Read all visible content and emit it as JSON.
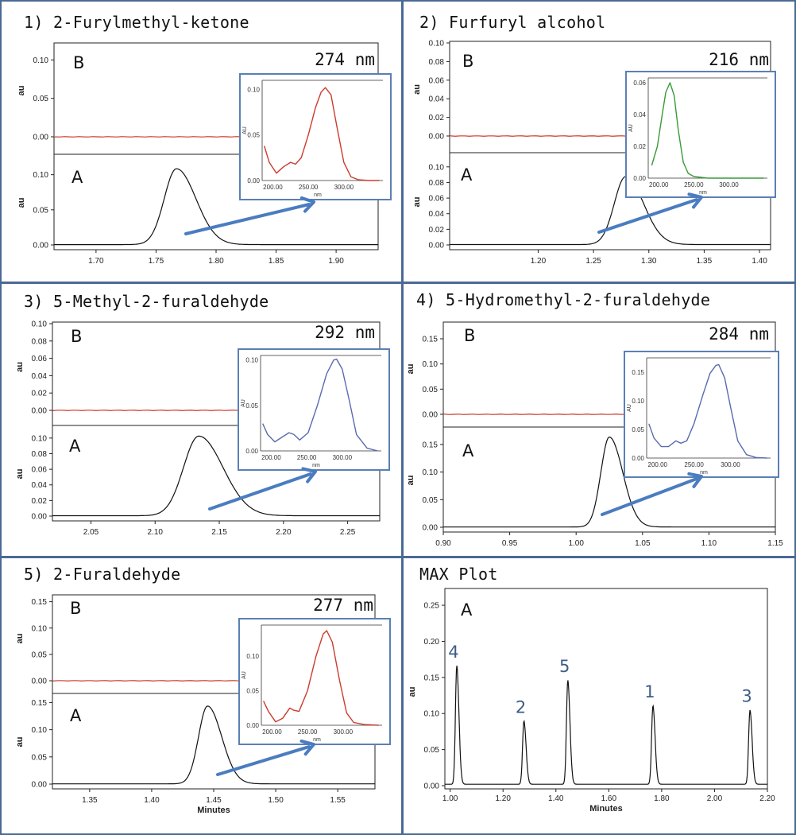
{
  "colors": {
    "frame": "#4a6a95",
    "spectrum_line": "#d04a3a",
    "chrom_line": "#111111",
    "arrow": "#4a7cc0",
    "inset_border": "#5b7fb5"
  },
  "chart_data": [
    {
      "type": "line",
      "title": "1) 2-Furylmethyl-ketone",
      "wavelength": "274 nm",
      "panel_B": {
        "label": "B",
        "ylabel": "au",
        "yticks": [
          "0.00",
          "0.05",
          "0.10"
        ],
        "ylim": [
          0,
          0.12
        ],
        "trace": "flat",
        "trace_color": "#d04a3a"
      },
      "panel_A": {
        "label": "A",
        "ylabel": "au",
        "yticks": [
          "0.00",
          "0.05",
          "0.10"
        ],
        "ylim": [
          0,
          0.12
        ],
        "peak_x": 1.767,
        "peak_y": 0.108,
        "xlim": [
          1.665,
          1.935
        ],
        "xticks": [
          "1.70",
          "1.75",
          "1.80",
          "1.85",
          "1.90"
        ],
        "xlabel": ""
      },
      "inset": {
        "ylabel": "AU",
        "xlabel": "nm",
        "xticks": [
          "200.00",
          "250.00",
          "300.00"
        ],
        "yticks": [
          "0.00",
          "0.05",
          "0.10"
        ],
        "ylim": [
          0,
          0.11
        ],
        "color": "#cc3b2e",
        "x": [
          188,
          195,
          205,
          215,
          225,
          232,
          240,
          250,
          260,
          268,
          274,
          282,
          290,
          300,
          310,
          320,
          335,
          350
        ],
        "y": [
          0.038,
          0.02,
          0.008,
          0.015,
          0.02,
          0.018,
          0.025,
          0.05,
          0.08,
          0.097,
          0.102,
          0.094,
          0.06,
          0.02,
          0.004,
          0.001,
          0.0,
          0.0
        ]
      }
    },
    {
      "type": "line",
      "title": "2) Furfuryl alcohol",
      "wavelength": "216 nm",
      "panel_B": {
        "label": "B",
        "ylabel": "au",
        "yticks": [
          "0.00",
          "0.02",
          "0.04",
          "0.06",
          "0.08",
          "0.10"
        ],
        "ylim": [
          0,
          0.1
        ],
        "trace": "flat",
        "trace_color": "#d04a3a"
      },
      "panel_A": {
        "label": "A",
        "ylabel": "au",
        "yticks": [
          "0.00",
          "0.02",
          "0.04",
          "0.06",
          "0.08",
          "0.10"
        ],
        "ylim": [
          0,
          0.11
        ],
        "peak_x": 1.279,
        "peak_y": 0.087,
        "xlim": [
          1.12,
          1.41
        ],
        "xticks": [
          "1.20",
          "1.25",
          "1.30",
          "1.35",
          "1.40"
        ],
        "xlabel": ""
      },
      "inset": {
        "ylabel": "AU",
        "xlabel": "nm",
        "xticks": [
          "200.00",
          "250.00",
          "300.00"
        ],
        "yticks": [
          "0.00",
          "0.02",
          "0.04",
          "0.06"
        ],
        "ylim": [
          0,
          0.063
        ],
        "color": "#3a9a3a",
        "x": [
          190,
          198,
          205,
          210,
          216,
          222,
          228,
          235,
          242,
          250,
          270,
          300,
          330,
          350
        ],
        "y": [
          0.008,
          0.02,
          0.04,
          0.054,
          0.06,
          0.052,
          0.03,
          0.01,
          0.003,
          0.001,
          0.0,
          0.0,
          0.0,
          0.0
        ]
      }
    },
    {
      "type": "line",
      "title": "3) 5-Methyl-2-furaldehyde",
      "wavelength": "292 nm",
      "panel_B": {
        "label": "B",
        "ylabel": "au",
        "yticks": [
          "0.00",
          "0.02",
          "0.04",
          "0.06",
          "0.08",
          "0.10"
        ],
        "ylim": [
          0,
          0.1
        ],
        "trace": "flat",
        "trace_color": "#d04a3a"
      },
      "panel_A": {
        "label": "A",
        "ylabel": "au",
        "yticks": [
          "0.00",
          "0.02",
          "0.04",
          "0.06",
          "0.08",
          "0.10"
        ],
        "ylim": [
          0,
          0.108
        ],
        "peak_x": 2.134,
        "peak_y": 0.102,
        "xlim": [
          2.02,
          2.275
        ],
        "xticks": [
          "2.05",
          "2.10",
          "2.15",
          "2.20",
          "2.25"
        ],
        "xlabel": ""
      },
      "inset": {
        "ylabel": "AU",
        "xlabel": "nm",
        "xticks": [
          "200.00",
          "250.00",
          "300.00"
        ],
        "yticks": [
          "0.00",
          "0.05",
          "0.10"
        ],
        "ylim": [
          0,
          0.105
        ],
        "color": "#5a6ab0",
        "x": [
          188,
          195,
          205,
          215,
          225,
          232,
          240,
          252,
          265,
          278,
          288,
          292,
          300,
          310,
          320,
          335,
          350
        ],
        "y": [
          0.03,
          0.018,
          0.01,
          0.015,
          0.02,
          0.018,
          0.012,
          0.02,
          0.05,
          0.085,
          0.1,
          0.101,
          0.09,
          0.055,
          0.018,
          0.003,
          0.0
        ]
      }
    },
    {
      "type": "line",
      "title": "4) 5-Hydromethyl-2-furaldehyde",
      "wavelength": "284 nm",
      "panel_B": {
        "label": "B",
        "ylabel": "au",
        "yticks": [
          "0.00",
          "0.05",
          "0.10",
          "0.15"
        ],
        "ylim": [
          0,
          0.18
        ],
        "trace": "flat",
        "trace_color": "#d04a3a"
      },
      "panel_A": {
        "label": "A",
        "ylabel": "au",
        "yticks": [
          "0.00",
          "0.05",
          "0.10",
          "0.15"
        ],
        "ylim": [
          0,
          0.17
        ],
        "peak_x": 1.025,
        "peak_y": 0.163,
        "xlim": [
          0.9,
          1.15
        ],
        "xticks": [
          "0.90",
          "0.95",
          "1.00",
          "1.05",
          "1.10",
          "1.15"
        ],
        "xlabel": ""
      },
      "inset": {
        "ylabel": "AU",
        "xlabel": "nm",
        "xticks": [
          "200.00",
          "250.00",
          "300.00"
        ],
        "yticks": [
          "0.00",
          "0.05",
          "0.10",
          "0.15"
        ],
        "ylim": [
          0,
          0.175
        ],
        "color": "#5a6ab0",
        "x": [
          188,
          195,
          205,
          215,
          225,
          232,
          240,
          250,
          262,
          272,
          280,
          284,
          292,
          300,
          310,
          322,
          335,
          350
        ],
        "y": [
          0.06,
          0.035,
          0.02,
          0.02,
          0.03,
          0.026,
          0.03,
          0.06,
          0.11,
          0.148,
          0.162,
          0.163,
          0.14,
          0.09,
          0.03,
          0.006,
          0.001,
          0.0
        ]
      }
    },
    {
      "type": "line",
      "title": "5) 2-Furaldehyde",
      "wavelength": "277 nm",
      "panel_B": {
        "label": "B",
        "ylabel": "au",
        "yticks": [
          "0.00",
          "0.05",
          "0.10",
          "0.15"
        ],
        "ylim": [
          0,
          0.16
        ],
        "trace": "flat",
        "trace_color": "#d04a3a"
      },
      "panel_A": {
        "label": "A",
        "ylabel": "au",
        "yticks": [
          "0.00",
          "0.05",
          "0.10",
          "0.15"
        ],
        "ylim": [
          0,
          0.155
        ],
        "peak_x": 1.445,
        "peak_y": 0.143,
        "xlim": [
          1.32,
          1.58
        ],
        "xticks": [
          "1.35",
          "1.40",
          "1.45",
          "1.50",
          "1.55"
        ],
        "xlabel": "Minutes"
      },
      "inset": {
        "ylabel": "AU",
        "xlabel": "nm",
        "xticks": [
          "200.00",
          "250.00",
          "300.00"
        ],
        "yticks": [
          "0.00",
          "0.05",
          "0.10"
        ],
        "ylim": [
          0,
          0.145
        ],
        "color": "#cc3b2e",
        "x": [
          188,
          195,
          205,
          215,
          225,
          230,
          238,
          250,
          262,
          272,
          277,
          285,
          295,
          305,
          315,
          330,
          350
        ],
        "y": [
          0.035,
          0.02,
          0.005,
          0.01,
          0.025,
          0.022,
          0.02,
          0.05,
          0.1,
          0.132,
          0.137,
          0.12,
          0.065,
          0.018,
          0.004,
          0.001,
          0.0
        ]
      }
    },
    {
      "type": "line",
      "title": "MAX Plot",
      "panel_A": {
        "label": "A",
        "ylabel": "au",
        "yticks": [
          "0.00",
          "0.05",
          "0.10",
          "0.15",
          "0.20",
          "0.25"
        ],
        "ylim": [
          0,
          0.26
        ],
        "xlim": [
          0.98,
          2.2
        ],
        "xticks": [
          "1.00",
          "1.20",
          "1.40",
          "1.60",
          "1.80",
          "2.00",
          "2.20"
        ],
        "xlabel": "Minutes"
      },
      "peaks": [
        {
          "label": "4",
          "x": 1.025,
          "y": 0.163
        },
        {
          "label": "2",
          "x": 1.279,
          "y": 0.087
        },
        {
          "label": "5",
          "x": 1.445,
          "y": 0.143
        },
        {
          "label": "1",
          "x": 1.767,
          "y": 0.108
        },
        {
          "label": "3",
          "x": 2.134,
          "y": 0.102
        }
      ]
    }
  ]
}
